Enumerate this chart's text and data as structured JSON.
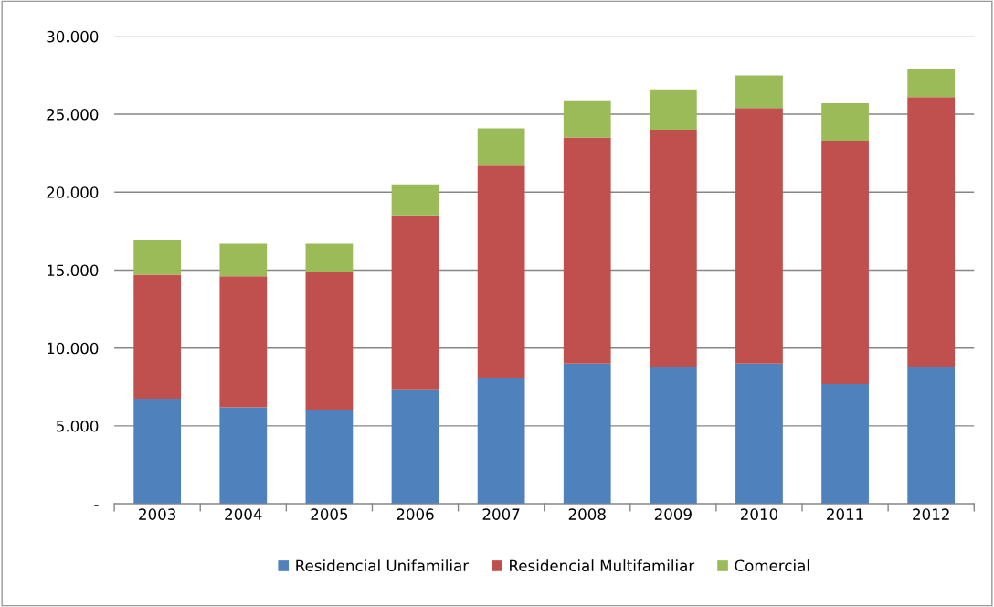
{
  "chart_data": {
    "type": "bar",
    "stacked": true,
    "categories": [
      "2003",
      "2004",
      "2005",
      "2006",
      "2007",
      "2008",
      "2009",
      "2010",
      "2011",
      "2012"
    ],
    "series": [
      {
        "name": "Residencial Unifamiliar",
        "color": "#4f81bd",
        "values": [
          6700,
          6200,
          6000,
          7300,
          8100,
          9000,
          8800,
          9000,
          7700,
          8800
        ]
      },
      {
        "name": "Residencial Multifamiliar",
        "color": "#c0504d",
        "values": [
          8000,
          8400,
          8900,
          11200,
          13600,
          14500,
          15200,
          16400,
          15600,
          17300
        ]
      },
      {
        "name": "Comercial",
        "color": "#9bbb59",
        "values": [
          2200,
          2100,
          1800,
          2000,
          2400,
          2400,
          2600,
          2100,
          2400,
          1800
        ]
      }
    ],
    "ylim": [
      0,
      30000
    ],
    "yticks": [
      {
        "value": 0,
        "label": "-"
      },
      {
        "value": 5000,
        "label": "5.000"
      },
      {
        "value": 10000,
        "label": "10.000"
      },
      {
        "value": 15000,
        "label": "15.000"
      },
      {
        "value": 20000,
        "label": "20.000"
      },
      {
        "value": 25000,
        "label": "25.000"
      },
      {
        "value": 30000,
        "label": "30.000"
      }
    ],
    "grid": "y",
    "legend": "bottom"
  }
}
